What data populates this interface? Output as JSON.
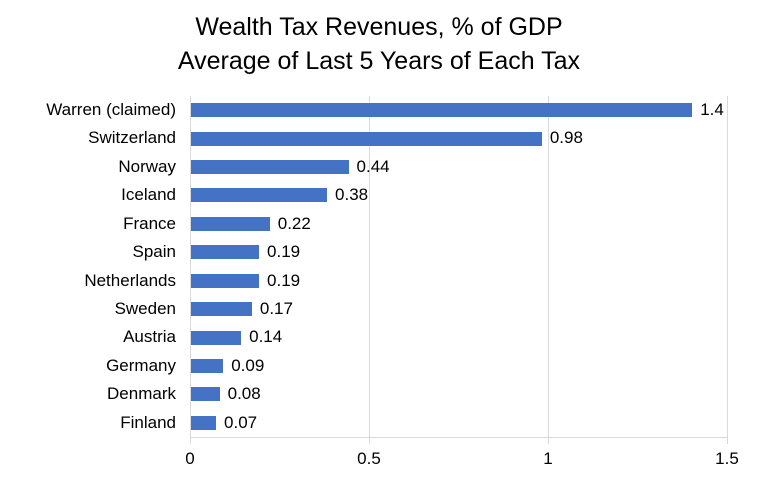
{
  "chart_data": {
    "type": "bar",
    "orientation": "horizontal",
    "title": "Wealth Tax Revenues, % of GDP",
    "subtitle": "Average of Last 5 Years of Each Tax",
    "categories": [
      "Warren (claimed)",
      "Switzerland",
      "Norway",
      "Iceland",
      "France",
      "Spain",
      "Netherlands",
      "Sweden",
      "Austria",
      "Germany",
      "Denmark",
      "Finland"
    ],
    "values": [
      1.4,
      0.98,
      0.44,
      0.38,
      0.22,
      0.19,
      0.19,
      0.17,
      0.14,
      0.09,
      0.08,
      0.07
    ],
    "value_labels": [
      "1.4",
      "0.98",
      "0.44",
      "0.38",
      "0.22",
      "0.19",
      "0.19",
      "0.17",
      "0.14",
      "0.09",
      "0.08",
      "0.07"
    ],
    "xlabel": "",
    "ylabel": "",
    "xlim": [
      0,
      1.5
    ],
    "x_ticks": [
      {
        "value": 0,
        "label": "0"
      },
      {
        "value": 0.5,
        "label": "0.5"
      },
      {
        "value": 1,
        "label": "1"
      },
      {
        "value": 1.5,
        "label": "1.5"
      }
    ],
    "grid": "vertical-gridlines-only",
    "legend": "none",
    "data_labels": "outside-end",
    "colors": {
      "bar": "#4472C4",
      "gridline": "#D9D9D9",
      "text": "#000000",
      "background": "#FFFFFF"
    }
  }
}
